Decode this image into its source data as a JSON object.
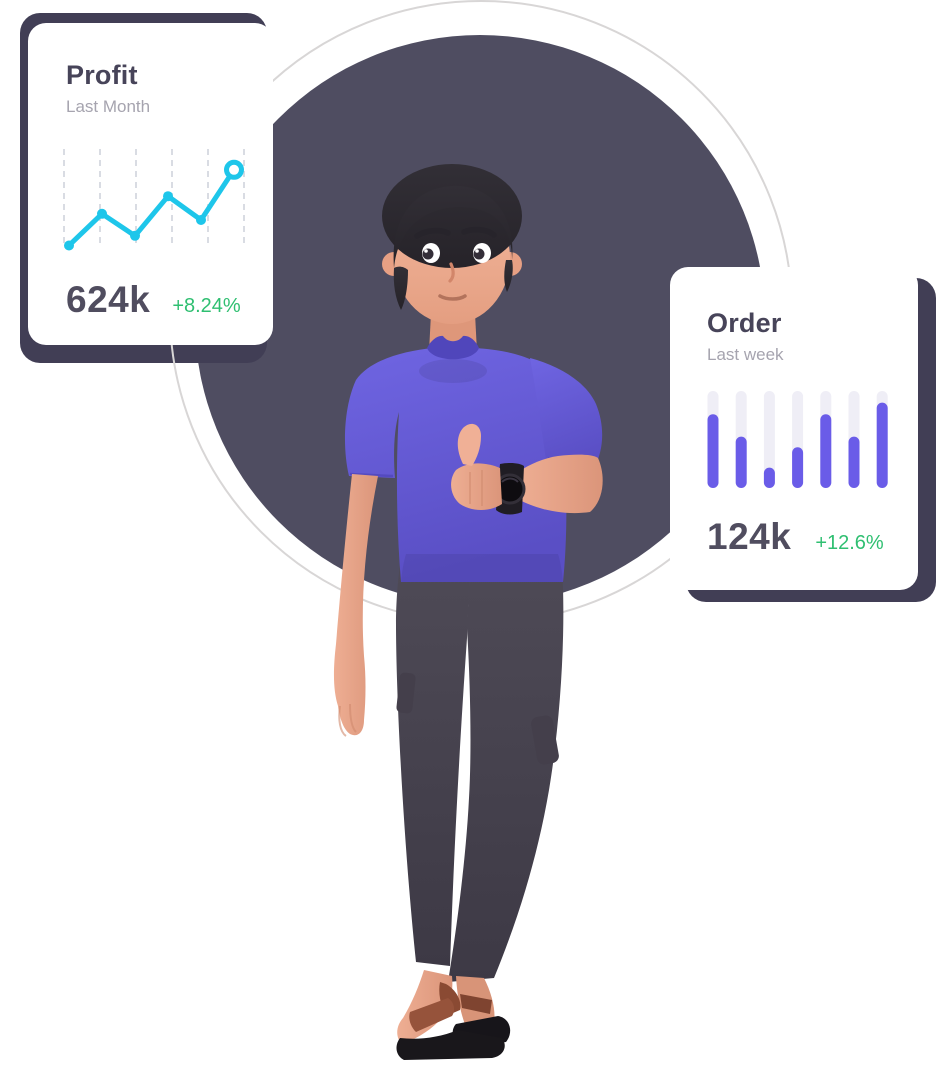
{
  "illustration": {
    "alt": "3D man with dark hair, purple t-shirt, dark jogger pants and brown sandals giving a thumbs-up and wearing a black wristwatch, standing with crossed legs in front of a dark circle surrounded by a thin outline ring"
  },
  "profit_card": {
    "title": "Profit",
    "subtitle": "Last Month",
    "value": "624k",
    "change": "+8.24%"
  },
  "order_card": {
    "title": "Order",
    "subtitle": "Last week",
    "value": "124k",
    "change": "+12.6%"
  },
  "chart_data": [
    {
      "type": "line",
      "card": "Profit",
      "title": "Profit — Last Month",
      "values": [
        4,
        40,
        15,
        60,
        33,
        90
      ],
      "value_unit": "percent of chart height (axes unlabeled)",
      "trend": "up, zigzag rising left to right",
      "grid": "vertical dashed gridlines",
      "gridline_count": 6,
      "line_color": "#1ec6ea",
      "point_color": "#1ec6ea",
      "grid_color": "#d9dce3",
      "last_point_style": "open ring"
    },
    {
      "type": "bar",
      "card": "Order",
      "title": "Order — Last week",
      "bar_count": 7,
      "values": [
        76,
        53,
        21,
        42,
        76,
        53,
        88
      ],
      "value_unit": "percent of track height (axes unlabeled)",
      "bar_color": "#6a5ce8",
      "track_color": "#efeef6",
      "bar_style": "rounded vertical pills on light tracks"
    }
  ],
  "colors": {
    "accent_green": "#2fbf71",
    "title_text": "#474459",
    "subtitle_text": "#a6a4af",
    "value_text": "#504d5f",
    "card_bg": "#ffffff",
    "card_shadow_plate": "#413e55",
    "dark_circle": "#4f4d61",
    "outline_circle": "#d8d6d6",
    "chart_cyan": "#1ec6ea",
    "chart_purple": "#6a5ce8"
  }
}
